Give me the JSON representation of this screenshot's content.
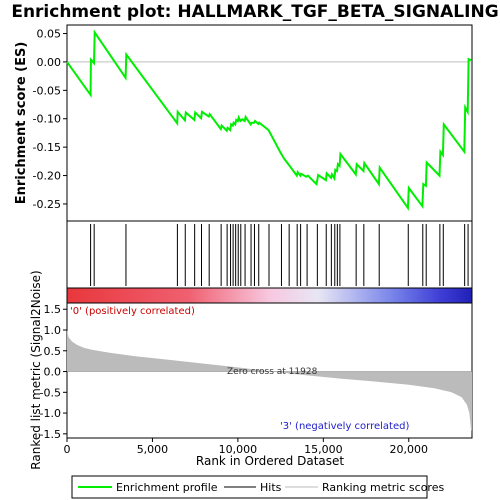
{
  "chart_data": {
    "type": "line",
    "title": "Enrichment plot: HALLMARK_TGF_BETA_SIGNALING",
    "x_range": [
      0,
      23700
    ],
    "es_panel": {
      "ylabel": "Enrichment score (ES)",
      "ylim": [
        -0.28,
        0.065
      ],
      "yticks": [
        0.05,
        0.0,
        -0.05,
        -0.1,
        -0.15,
        -0.2,
        -0.25
      ],
      "ytick_labels": [
        "0.05",
        "0.00",
        "-0.05",
        "-0.10",
        "-0.15",
        "-0.20",
        "-0.25"
      ],
      "series_name": "Enrichment profile",
      "color": "#00ee00",
      "points": [
        [
          0,
          0.0
        ],
        [
          1380,
          -0.058
        ],
        [
          1400,
          0.004
        ],
        [
          1580,
          -0.002
        ],
        [
          1620,
          0.052
        ],
        [
          3430,
          -0.028
        ],
        [
          3470,
          0.013
        ],
        [
          6450,
          -0.108
        ],
        [
          6480,
          -0.088
        ],
        [
          6900,
          -0.103
        ],
        [
          6950,
          -0.089
        ],
        [
          7450,
          -0.102
        ],
        [
          7500,
          -0.089
        ],
        [
          7850,
          -0.099
        ],
        [
          7900,
          -0.088
        ],
        [
          8300,
          -0.096
        ],
        [
          8350,
          -0.092
        ],
        [
          9000,
          -0.118
        ],
        [
          9050,
          -0.112
        ],
        [
          9350,
          -0.121
        ],
        [
          9400,
          -0.116
        ],
        [
          9550,
          -0.12
        ],
        [
          9600,
          -0.11
        ],
        [
          9700,
          -0.112
        ],
        [
          9750,
          -0.107
        ],
        [
          9850,
          -0.11
        ],
        [
          9900,
          -0.102
        ],
        [
          10000,
          -0.104
        ],
        [
          10050,
          -0.098
        ],
        [
          10150,
          -0.104
        ],
        [
          10250,
          -0.101
        ],
        [
          10400,
          -0.104
        ],
        [
          10450,
          -0.097
        ],
        [
          10750,
          -0.11
        ],
        [
          10800,
          -0.107
        ],
        [
          10950,
          -0.107
        ],
        [
          11000,
          -0.104
        ],
        [
          11200,
          -0.109
        ],
        [
          11250,
          -0.107
        ],
        [
          11800,
          -0.12
        ],
        [
          12500,
          -0.16
        ],
        [
          12700,
          -0.17
        ],
        [
          13200,
          -0.19
        ],
        [
          13450,
          -0.2
        ],
        [
          13500,
          -0.194
        ],
        [
          13650,
          -0.2
        ],
        [
          13700,
          -0.197
        ],
        [
          14000,
          -0.202
        ],
        [
          14100,
          -0.2
        ],
        [
          14600,
          -0.215
        ],
        [
          14700,
          -0.199
        ],
        [
          15150,
          -0.208
        ],
        [
          15200,
          -0.196
        ],
        [
          15450,
          -0.204
        ],
        [
          15500,
          -0.198
        ],
        [
          15650,
          -0.205
        ],
        [
          15700,
          -0.19
        ],
        [
          15800,
          -0.192
        ],
        [
          15850,
          -0.18
        ],
        [
          15950,
          -0.183
        ],
        [
          16000,
          -0.162
        ],
        [
          16900,
          -0.198
        ],
        [
          16950,
          -0.18
        ],
        [
          17350,
          -0.192
        ],
        [
          17400,
          -0.178
        ],
        [
          18250,
          -0.215
        ],
        [
          18300,
          -0.186
        ],
        [
          19950,
          -0.257
        ],
        [
          20000,
          -0.222
        ],
        [
          20800,
          -0.254
        ],
        [
          20850,
          -0.215
        ],
        [
          21000,
          -0.218
        ],
        [
          21050,
          -0.177
        ],
        [
          21800,
          -0.2
        ],
        [
          21850,
          -0.158
        ],
        [
          22000,
          -0.164
        ],
        [
          22050,
          -0.11
        ],
        [
          23250,
          -0.158
        ],
        [
          23300,
          -0.08
        ],
        [
          23450,
          -0.088
        ],
        [
          23500,
          0.005
        ],
        [
          23650,
          0.003
        ]
      ]
    },
    "hits": [
      1380,
      1590,
      3450,
      6460,
      6920,
      7470,
      7870,
      8320,
      9020,
      9370,
      9570,
      9720,
      9870,
      10020,
      10170,
      10420,
      10770,
      10970,
      11220,
      11820,
      12550,
      13000,
      13470,
      13670,
      14050,
      14650,
      15170,
      15470,
      15670,
      15820,
      15970,
      16920,
      17370,
      18270,
      19970,
      20820,
      21020,
      21820,
      22020,
      23270,
      23470
    ],
    "rank_panel": {
      "ylabel": "Ranked list metric (Signal2Noise)",
      "xlabel": "Rank in Ordered Dataset",
      "ylim": [
        -1.6,
        1.65
      ],
      "yticks": [
        1.5,
        1.0,
        0.5,
        0.0,
        -0.5,
        -1.0,
        -1.5
      ],
      "ytick_labels": [
        "1.5",
        "1.0",
        "0.5",
        "0.0",
        "-0.5",
        "-1.0",
        "-1.5"
      ],
      "xticks": [
        0,
        5000,
        10000,
        15000,
        20000
      ],
      "xtick_labels": [
        "0",
        "5,000",
        "10,000",
        "15,000",
        "20,000"
      ],
      "profile": [
        [
          0,
          1.0
        ],
        [
          100,
          0.82
        ],
        [
          300,
          0.72
        ],
        [
          600,
          0.64
        ],
        [
          1000,
          0.57
        ],
        [
          1500,
          0.52
        ],
        [
          2500,
          0.45
        ],
        [
          4000,
          0.37
        ],
        [
          6000,
          0.28
        ],
        [
          8000,
          0.19
        ],
        [
          10000,
          0.1
        ],
        [
          11928,
          0.0
        ],
        [
          14000,
          -0.09
        ],
        [
          16000,
          -0.17
        ],
        [
          18000,
          -0.24
        ],
        [
          20000,
          -0.32
        ],
        [
          21500,
          -0.4
        ],
        [
          22500,
          -0.5
        ],
        [
          23100,
          -0.62
        ],
        [
          23400,
          -0.8
        ],
        [
          23550,
          -1.0
        ],
        [
          23650,
          -1.42
        ],
        [
          23700,
          -1.42
        ]
      ],
      "zero_cross_label": "Zero cross at 11928",
      "pos_label": "'0' (positively correlated)",
      "neg_label": "'3' (negatively correlated)"
    },
    "legend": {
      "placement": "bottom",
      "entries": [
        {
          "name": "Enrichment profile",
          "color": "#00ee00"
        },
        {
          "name": "Hits",
          "color": "#000000"
        },
        {
          "name": "Ranking metric scores",
          "color": "#bbbbbb"
        }
      ]
    }
  }
}
